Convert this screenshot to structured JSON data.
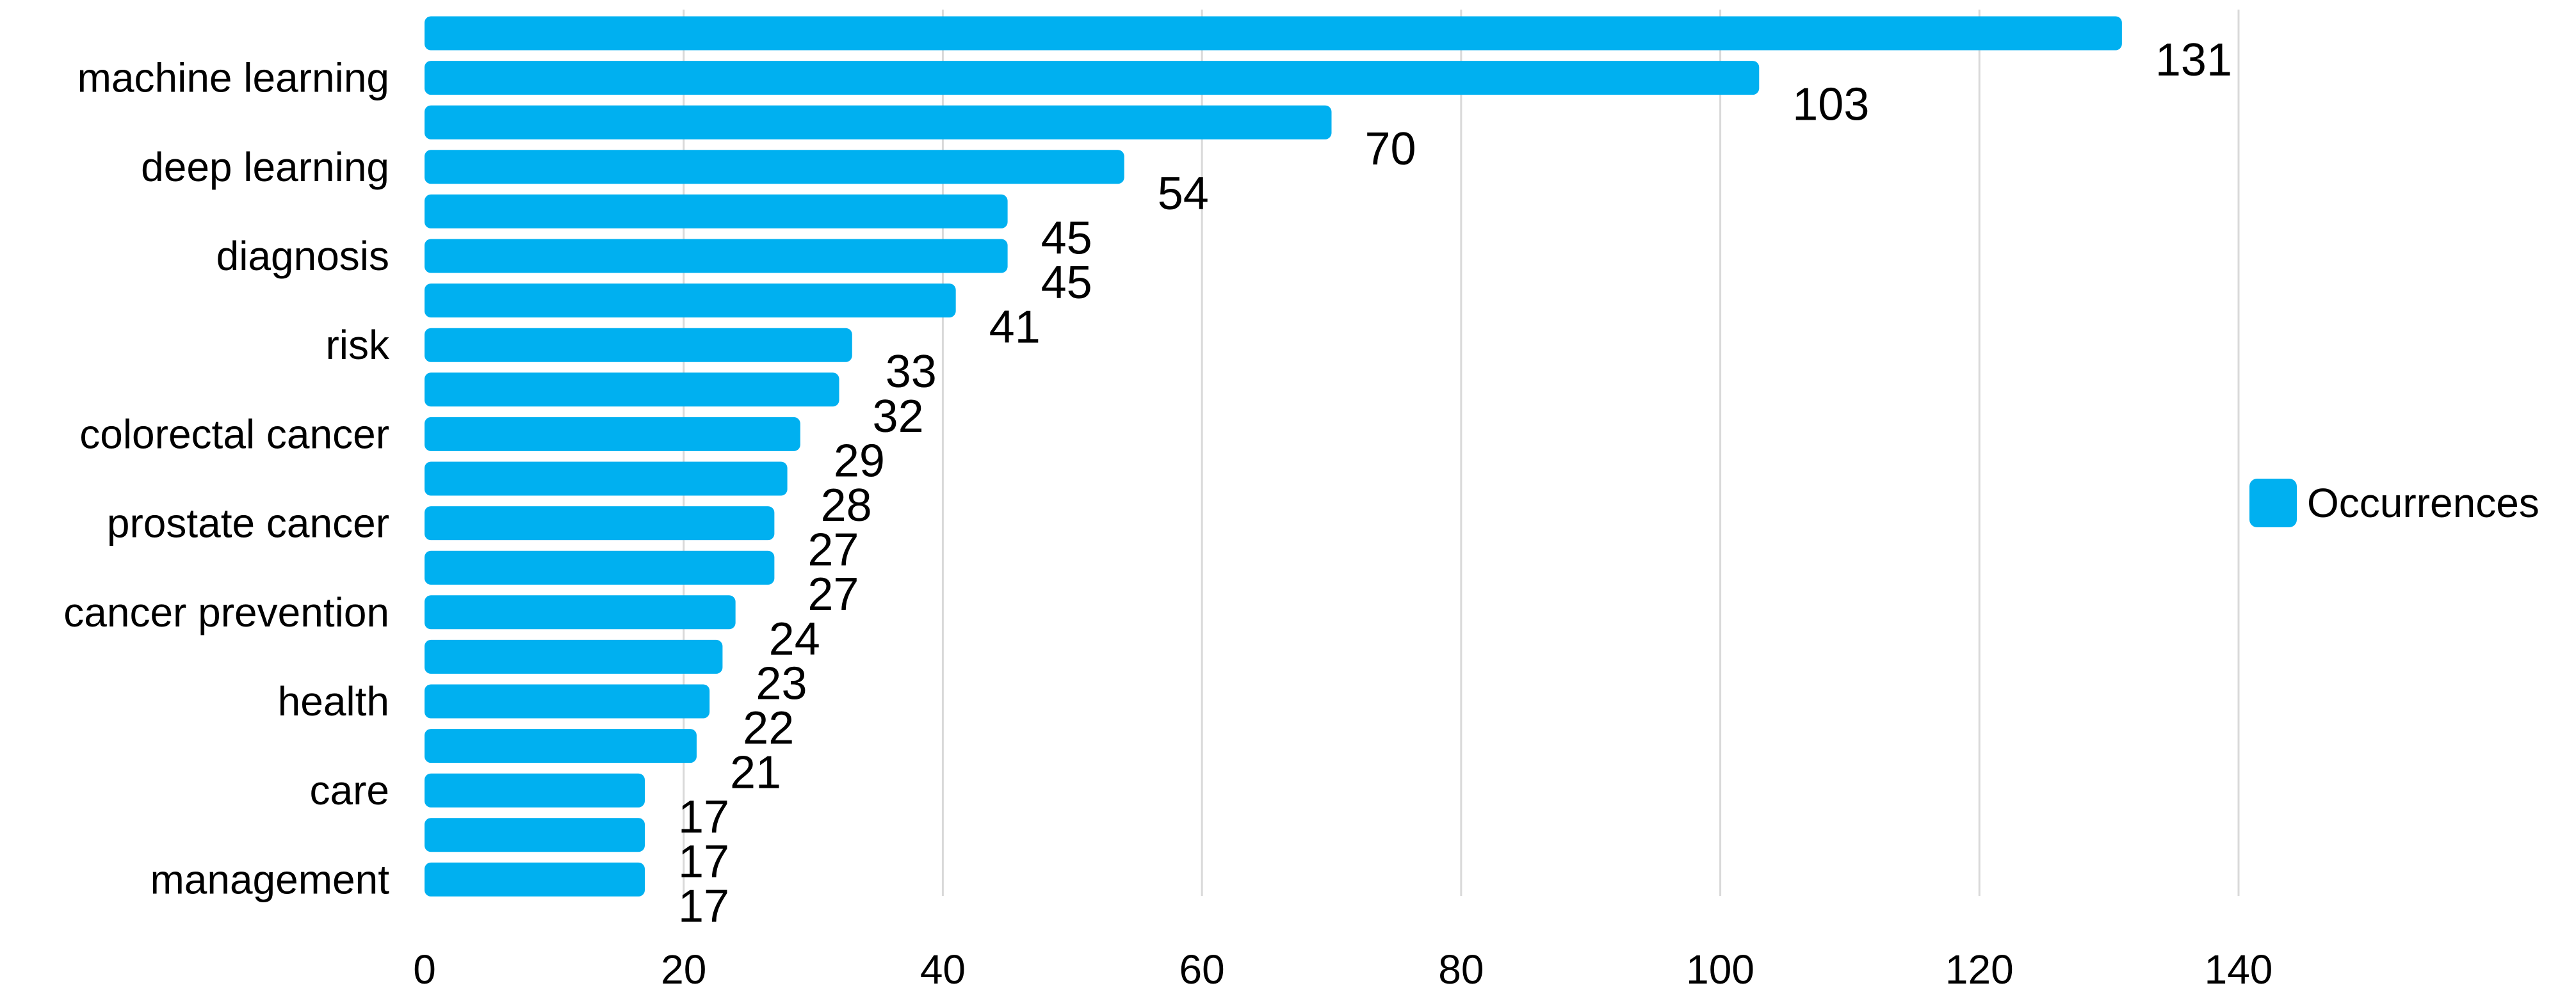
{
  "chart_data": {
    "type": "bar",
    "orientation": "horizontal",
    "categories": [
      "",
      "machine learning",
      "",
      "deep learning",
      "",
      "diagnosis",
      "",
      "risk",
      "",
      "colorectal cancer",
      "",
      "prostate cancer",
      "",
      "cancer prevention",
      "",
      "health",
      "",
      "care",
      "",
      "management"
    ],
    "series": [
      {
        "name": "Occurrences",
        "values": [
          131,
          103,
          70,
          54,
          45,
          45,
          41,
          33,
          32,
          29,
          28,
          27,
          27,
          24,
          23,
          22,
          21,
          17,
          17,
          17
        ]
      }
    ],
    "value_labels": [
      "131",
      "103",
      "70",
      "54",
      "45",
      "45",
      "41",
      "33",
      "32",
      "29",
      "28",
      "27",
      "27",
      "24",
      "23",
      "22",
      "21",
      "17",
      "17",
      "17"
    ],
    "xlim": [
      0,
      140
    ],
    "x_ticks": [
      0,
      20,
      40,
      60,
      80,
      100,
      120,
      140
    ],
    "x_tick_labels": [
      "0",
      "20",
      "40",
      "60",
      "80",
      "100",
      "120",
      "140"
    ],
    "grid": "vertical",
    "legend_position": "right",
    "bar_color": "#00B0F0",
    "grid_color": "#D9D9D9",
    "title": "",
    "xlabel": "",
    "ylabel": ""
  }
}
